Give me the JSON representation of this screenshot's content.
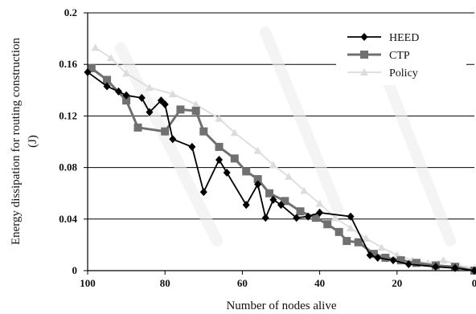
{
  "chart_data": {
    "type": "line",
    "title": "",
    "xlabel": "Number of nodes alive",
    "ylabel_line1": "Energy dissipation for routing construction",
    "ylabel_line2": "(J)",
    "xlim": [
      100,
      0
    ],
    "ylim": [
      0,
      0.2
    ],
    "x_reversed": true,
    "x_ticks": [
      100,
      80,
      60,
      40,
      20,
      0
    ],
    "y_ticks": [
      0,
      0.04,
      0.08,
      0.12,
      0.16,
      0.2
    ],
    "y_tick_labels": [
      "0",
      "0.04",
      "0.08",
      "0.12",
      "0.16",
      "0.2"
    ],
    "grid": "horizontal",
    "legend_position": "top-right",
    "series": [
      {
        "name": "HEED",
        "color": "#000000",
        "marker": "diamond",
        "points": [
          [
            100,
            0.154
          ],
          [
            95,
            0.143
          ],
          [
            92,
            0.139
          ],
          [
            90,
            0.136
          ],
          [
            86,
            0.134
          ],
          [
            84,
            0.123
          ],
          [
            81,
            0.132
          ],
          [
            80,
            0.129
          ],
          [
            78,
            0.102
          ],
          [
            73,
            0.096
          ],
          [
            70,
            0.061
          ],
          [
            66,
            0.086
          ],
          [
            64,
            0.076
          ],
          [
            59,
            0.051
          ],
          [
            56,
            0.067
          ],
          [
            54,
            0.041
          ],
          [
            52,
            0.055
          ],
          [
            50,
            0.051
          ],
          [
            46,
            0.041
          ],
          [
            43,
            0.042
          ],
          [
            40,
            0.045
          ],
          [
            32,
            0.042
          ],
          [
            27,
            0.012
          ],
          [
            25,
            0.01
          ],
          [
            21,
            0.008
          ],
          [
            17,
            0.005
          ],
          [
            10,
            0.003
          ],
          [
            5,
            0.002
          ],
          [
            0,
            0.0
          ]
        ]
      },
      {
        "name": "CTP",
        "color": "#707070",
        "marker": "square",
        "points": [
          [
            99,
            0.157
          ],
          [
            95,
            0.148
          ],
          [
            90,
            0.132
          ],
          [
            87,
            0.111
          ],
          [
            80,
            0.108
          ],
          [
            76,
            0.125
          ],
          [
            72,
            0.124
          ],
          [
            70,
            0.108
          ],
          [
            66,
            0.096
          ],
          [
            62,
            0.087
          ],
          [
            59,
            0.077
          ],
          [
            56,
            0.071
          ],
          [
            53,
            0.06
          ],
          [
            49,
            0.054
          ],
          [
            45,
            0.046
          ],
          [
            41,
            0.041
          ],
          [
            38,
            0.036
          ],
          [
            35,
            0.03
          ],
          [
            33,
            0.023
          ],
          [
            30,
            0.022
          ],
          [
            26,
            0.013
          ],
          [
            23,
            0.01
          ],
          [
            19,
            0.008
          ],
          [
            15,
            0.006
          ],
          [
            10,
            0.004
          ],
          [
            5,
            0.003
          ],
          [
            0,
            0.0
          ]
        ]
      },
      {
        "name": "Policy",
        "color": "#dcdcdc",
        "marker": "triangle",
        "points": [
          [
            98,
            0.173
          ],
          [
            94,
            0.165
          ],
          [
            90,
            0.153
          ],
          [
            84,
            0.142
          ],
          [
            78,
            0.137
          ],
          [
            72,
            0.129
          ],
          [
            66,
            0.118
          ],
          [
            62,
            0.107
          ],
          [
            56,
            0.093
          ],
          [
            52,
            0.082
          ],
          [
            48,
            0.073
          ],
          [
            44,
            0.062
          ],
          [
            40,
            0.052
          ],
          [
            36,
            0.041
          ],
          [
            32,
            0.033
          ],
          [
            28,
            0.025
          ],
          [
            24,
            0.018
          ],
          [
            20,
            0.012
          ],
          [
            16,
            0.008
          ],
          [
            12,
            0.006
          ],
          [
            8,
            0.008
          ],
          [
            4,
            0.004
          ],
          [
            0,
            0.002
          ]
        ]
      }
    ]
  }
}
